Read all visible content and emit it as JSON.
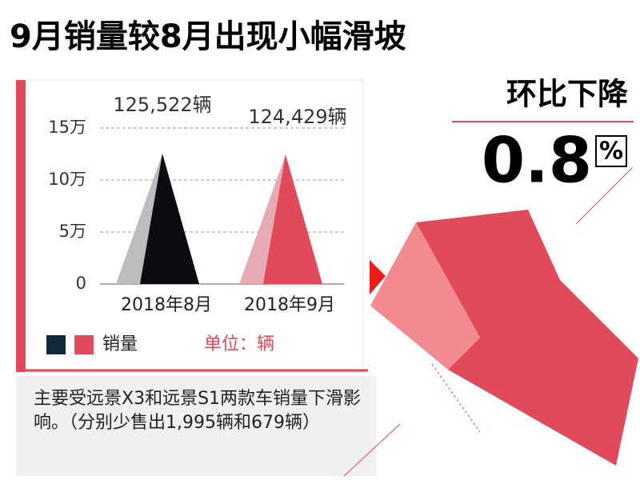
{
  "chart_data": {
    "type": "pyramid",
    "title": "9月销量较8月出现小幅滑坡",
    "change_label": "环比下降",
    "change_value": 0.8,
    "change_unit": "%",
    "categories": [
      "2018年8月",
      "2018年9月"
    ],
    "series": [
      {
        "name": "销量",
        "colors": [
          "#0b0b12",
          "#e04a5a"
        ],
        "shadow_colors": [
          "#bdbdbd",
          "#e8aab2"
        ],
        "values": [
          125522,
          124429
        ],
        "value_labels": [
          "125,522辆",
          "124,429辆"
        ]
      }
    ],
    "legend_colors": [
      "#13283a",
      "#e04a5a"
    ],
    "unit": "单位：辆",
    "ylim": [
      0,
      150000
    ],
    "yticks": [
      0,
      {
        "value": 50000,
        "label": "5万"
      },
      {
        "value": 100000,
        "label": "10万"
      },
      {
        "value": 150000,
        "label": "15万"
      }
    ],
    "grid": true,
    "note": "主要受远景X3和远景S1两款车销量下滑影响。（分别少售出1,995辆和679辆）"
  }
}
